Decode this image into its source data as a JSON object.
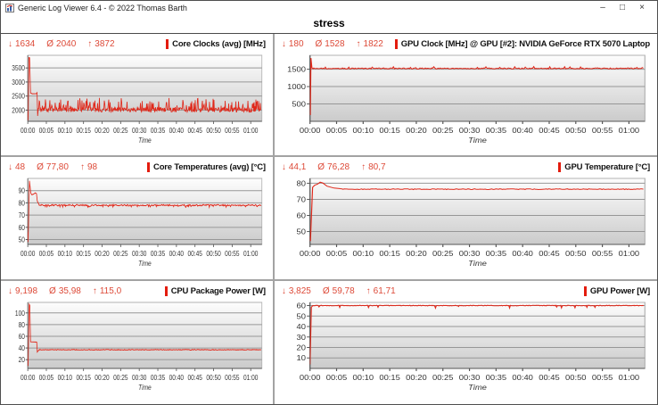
{
  "window": {
    "title": "Generic Log Viewer 6.4 - © 2022 Thomas Barth",
    "controls": {
      "minimize": "–",
      "maximize": "□",
      "close": "×"
    }
  },
  "page_title": "stress",
  "colors": {
    "line": "#e0281a",
    "stats_text": "#dd4a38",
    "legend_bar": "#e31c0e",
    "grid_line": "#979797",
    "plot_border": "#b2b2b2",
    "axis": "#555555",
    "tick_text": "#333333"
  },
  "stats_icons": {
    "min": "↓",
    "avg": "Ø",
    "max": "↑"
  },
  "x_axis": {
    "label": "Time",
    "tick_minutes": [
      0,
      5,
      10,
      15,
      20,
      25,
      30,
      35,
      40,
      45,
      50,
      55,
      60
    ],
    "tick_labels": [
      "00:00",
      "00:05",
      "00:10",
      "00:15",
      "00:20",
      "00:25",
      "00:30",
      "00:35",
      "00:40",
      "00:45",
      "00:50",
      "00:55",
      "01:00"
    ],
    "xlim": [
      0,
      63
    ]
  },
  "chart_data": [
    {
      "type": "line",
      "title": "Core Clocks (avg) [MHz]",
      "stats": {
        "min": "1634",
        "avg": "2040",
        "max": "3872"
      },
      "ylim": [
        1600,
        3950
      ],
      "yticks": [
        2000,
        2500,
        3000,
        3500
      ],
      "xlabel": "Time",
      "keypoints": [
        [
          0,
          1950
        ],
        [
          0.12,
          1634
        ],
        [
          0.3,
          3872
        ],
        [
          0.5,
          3860
        ],
        [
          0.75,
          2610
        ],
        [
          1.2,
          2580
        ],
        [
          2.3,
          2585
        ],
        [
          2.5,
          2620
        ],
        [
          2.65,
          1790
        ],
        [
          2.85,
          2060
        ]
      ],
      "noise": {
        "from": 2.95,
        "to": 62.8,
        "step": 0.12,
        "base": 2010,
        "amp": 80,
        "spike": 380,
        "spike_prob": 0.22
      }
    },
    {
      "type": "line",
      "title": "GPU Clock [MHz] @ GPU [#2]: NVIDIA GeForce RTX 5070 Laptop",
      "stats": {
        "min": "180",
        "avg": "1528",
        "max": "1822"
      },
      "ylim": [
        0,
        1900
      ],
      "yticks": [
        500,
        1000,
        1500
      ],
      "xlabel": "Time",
      "keypoints": [
        [
          0,
          1400
        ],
        [
          0.06,
          180
        ],
        [
          0.18,
          1822
        ],
        [
          0.35,
          1540
        ],
        [
          0.6,
          1515
        ]
      ],
      "noise": {
        "from": 0.7,
        "to": 62.8,
        "step": 0.2,
        "base": 1522,
        "amp": 14,
        "spike": 55,
        "spike_prob": 0.08
      }
    },
    {
      "type": "line",
      "title": "Core Temperatures (avg) [°C]",
      "stats": {
        "min": "48",
        "avg": "77,80",
        "max": "98"
      },
      "ylim": [
        46,
        100
      ],
      "yticks": [
        50,
        60,
        70,
        80,
        90
      ],
      "xlabel": "Time",
      "keypoints": [
        [
          0,
          56
        ],
        [
          0.1,
          48
        ],
        [
          0.45,
          98
        ],
        [
          0.8,
          88
        ],
        [
          1.1,
          86.6
        ],
        [
          1.6,
          87.2
        ],
        [
          2.0,
          88.2
        ],
        [
          2.35,
          87.5
        ],
        [
          2.55,
          81.5
        ],
        [
          3.0,
          78.8
        ]
      ],
      "noise": {
        "from": 3.1,
        "to": 62.8,
        "step": 0.15,
        "base": 78.1,
        "amp": 0.55,
        "spike": -1.6,
        "spike_prob": 0.12
      }
    },
    {
      "type": "line",
      "title": "GPU Temperature [°C]",
      "stats": {
        "min": "44,1",
        "avg": "76,28",
        "max": "80,7"
      },
      "ylim": [
        42,
        83
      ],
      "yticks": [
        50,
        60,
        70,
        80
      ],
      "xlabel": "Time",
      "keypoints": [
        [
          0,
          47
        ],
        [
          0.08,
          44.1
        ],
        [
          0.5,
          77.5
        ],
        [
          0.9,
          78.8
        ],
        [
          1.4,
          79.4
        ],
        [
          1.9,
          80.7
        ],
        [
          2.4,
          80.2
        ],
        [
          3.2,
          78.2
        ],
        [
          4.5,
          77.0
        ],
        [
          6.0,
          76.5
        ]
      ],
      "noise": {
        "from": 6.2,
        "to": 62.8,
        "step": 0.25,
        "base": 76.3,
        "amp": 0.22,
        "spike": 0,
        "spike_prob": 0
      }
    },
    {
      "type": "line",
      "title": "CPU Package Power [W]",
      "stats": {
        "min": "9,198",
        "avg": "35,98",
        "max": "115,0"
      },
      "ylim": [
        5,
        118
      ],
      "yticks": [
        20,
        40,
        60,
        80,
        100
      ],
      "xlabel": "Time",
      "keypoints": [
        [
          0,
          22
        ],
        [
          0.1,
          9.2
        ],
        [
          0.38,
          115
        ],
        [
          0.55,
          113
        ],
        [
          0.75,
          50.5
        ],
        [
          2.4,
          50
        ],
        [
          2.55,
          33
        ],
        [
          3.0,
          36.8
        ]
      ],
      "noise": {
        "from": 3.1,
        "to": 62.8,
        "step": 0.15,
        "base": 36.9,
        "amp": 0.6,
        "spike": 0,
        "spike_prob": 0
      }
    },
    {
      "type": "line",
      "title": "GPU Power [W]",
      "stats": {
        "min": "3,825",
        "avg": "59,78",
        "max": "61,71"
      },
      "ylim": [
        0,
        63
      ],
      "yticks": [
        10,
        20,
        30,
        40,
        50,
        60
      ],
      "xlabel": "Time",
      "keypoints": [
        [
          0,
          3.8
        ],
        [
          0.25,
          58.5
        ],
        [
          0.55,
          60
        ]
      ],
      "noise": {
        "from": 0.65,
        "to": 62.8,
        "step": 0.15,
        "base": 60,
        "amp": 0.3,
        "spike": -2.4,
        "spike_prob": 0.03
      }
    }
  ]
}
